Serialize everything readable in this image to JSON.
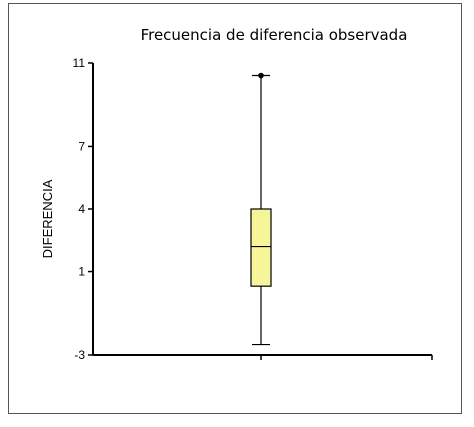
{
  "chart_data": {
    "type": "box",
    "title": "Frecuencia de diferencia observada",
    "xlabel": "",
    "ylabel": "DIFERENCIA",
    "yticks": [
      -3,
      1,
      4,
      7,
      11
    ],
    "ylim": [
      -3,
      11
    ],
    "grid": false,
    "box": {
      "min": -2.5,
      "q1": 0.3,
      "median": 2.2,
      "q3": 4.0,
      "max": 10.4,
      "outliers": [
        10.4
      ],
      "fill": "#f7f59a",
      "stroke": "#000000"
    }
  }
}
